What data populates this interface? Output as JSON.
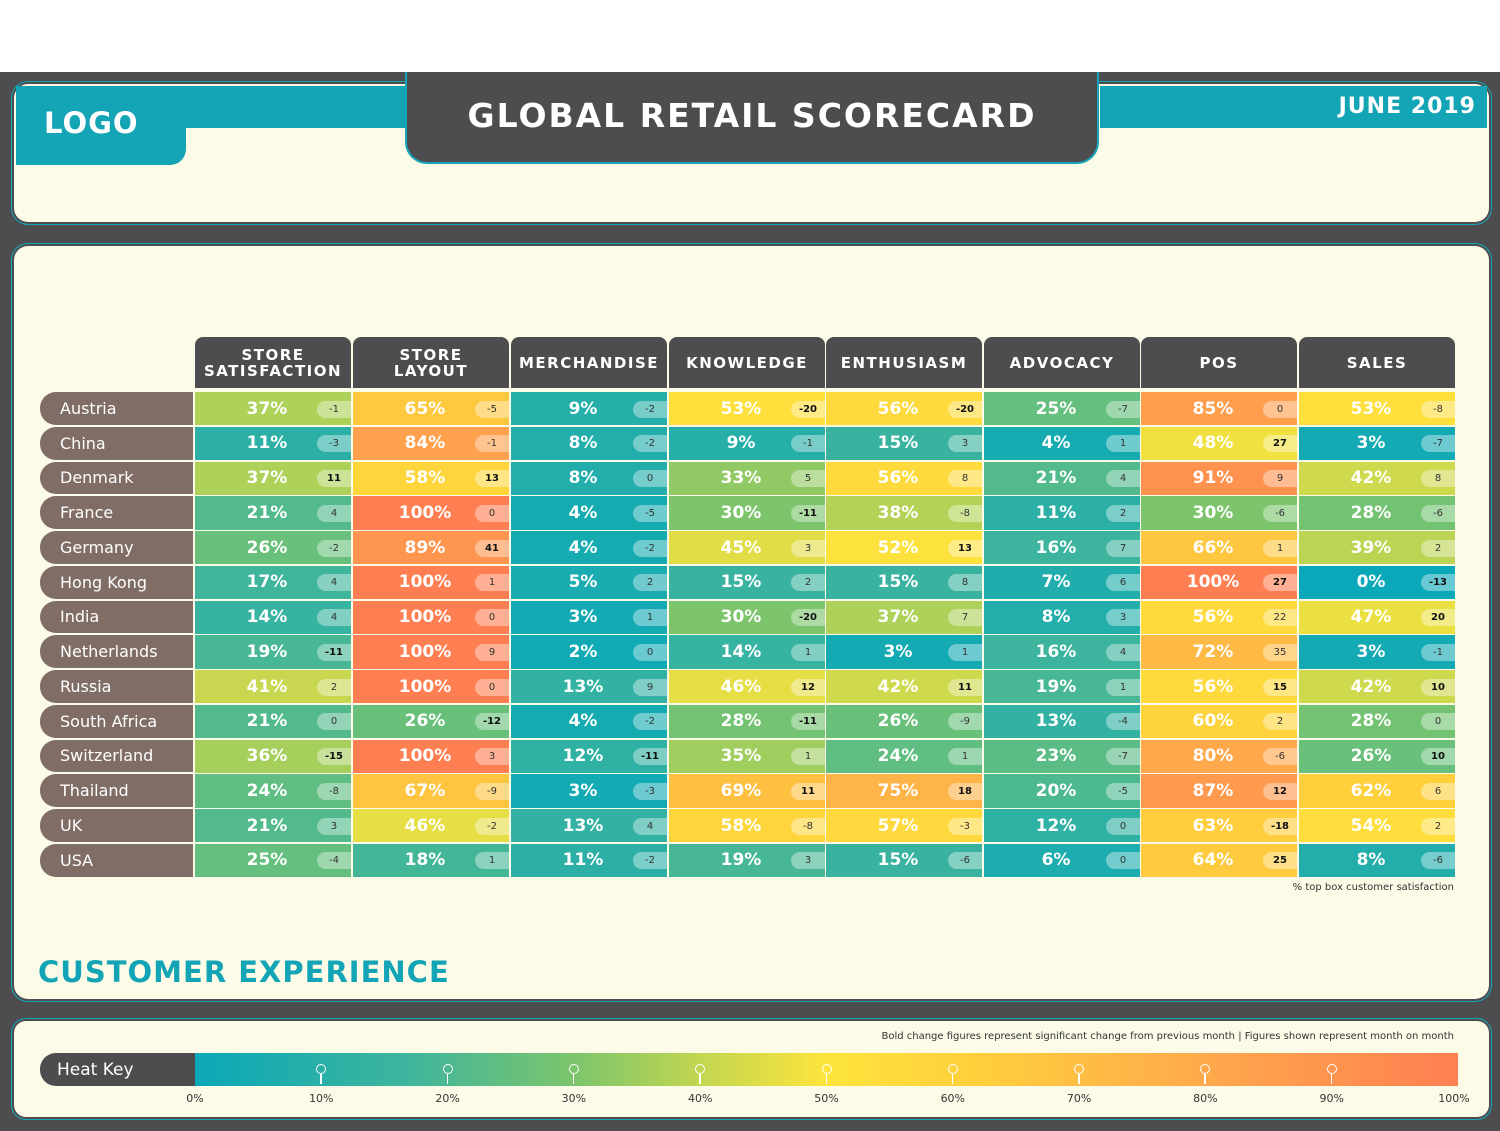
{
  "header": {
    "logo": "LOGO",
    "title": "GLOBAL RETAIL SCORECARD",
    "date": "JUNE 2019"
  },
  "section_title": "CUSTOMER EXPERIENCE",
  "footnote": "% top box customer satisfaction",
  "key_note": "Bold change figures represent significant change from previous month  |  Figures shown represent month on month",
  "heat_key": {
    "label": "Heat Key",
    "ticks": [
      "0%",
      "10%",
      "20%",
      "30%",
      "40%",
      "50%",
      "60%",
      "70%",
      "80%",
      "90%",
      "100%"
    ]
  },
  "colors": {
    "teal": "#13a4b6",
    "dark": "#4d4d4f",
    "row_label": "#806e66",
    "background": "#fbfbe8"
  },
  "chart_data": {
    "type": "heatmap",
    "columns": [
      "STORE\nSATISFACTION",
      "STORE\nLAYOUT",
      "MERCHANDISE",
      "KNOWLEDGE",
      "ENTHUSIASM",
      "ADVOCACY",
      "POS",
      "SALES"
    ],
    "rows": [
      "Austria",
      "China",
      "Denmark",
      "France",
      "Germany",
      "Hong Kong",
      "India",
      "Netherlands",
      "Russia",
      "South Africa",
      "Switzerland",
      "Thailand",
      "UK",
      "USA"
    ],
    "values": [
      [
        37,
        65,
        9,
        53,
        56,
        25,
        85,
        53
      ],
      [
        11,
        84,
        8,
        9,
        15,
        4,
        48,
        3
      ],
      [
        37,
        58,
        8,
        33,
        56,
        21,
        91,
        42
      ],
      [
        21,
        100,
        4,
        30,
        38,
        11,
        30,
        28
      ],
      [
        26,
        89,
        4,
        45,
        52,
        16,
        66,
        39
      ],
      [
        17,
        100,
        5,
        15,
        15,
        7,
        100,
        0
      ],
      [
        14,
        100,
        3,
        30,
        37,
        8,
        56,
        47
      ],
      [
        19,
        100,
        2,
        14,
        3,
        16,
        72,
        3
      ],
      [
        41,
        100,
        13,
        46,
        42,
        19,
        56,
        42
      ],
      [
        21,
        26,
        4,
        28,
        26,
        13,
        60,
        28
      ],
      [
        36,
        100,
        12,
        35,
        24,
        23,
        80,
        26
      ],
      [
        24,
        67,
        3,
        69,
        75,
        20,
        87,
        62
      ],
      [
        21,
        46,
        13,
        58,
        57,
        12,
        63,
        54
      ],
      [
        25,
        18,
        11,
        19,
        15,
        6,
        64,
        8
      ]
    ],
    "changes": [
      [
        -1,
        -5,
        -2,
        -20,
        -20,
        -7,
        0,
        -8
      ],
      [
        -3,
        -1,
        -2,
        -1,
        3,
        1,
        27,
        -7
      ],
      [
        11,
        13,
        0,
        5,
        8,
        4,
        9,
        8
      ],
      [
        4,
        0,
        -5,
        -11,
        -8,
        2,
        -6,
        -6
      ],
      [
        -2,
        41,
        -2,
        3,
        13,
        7,
        1,
        2
      ],
      [
        4,
        1,
        2,
        2,
        8,
        6,
        27,
        -13
      ],
      [
        4,
        0,
        1,
        -20,
        7,
        3,
        22,
        20
      ],
      [
        -11,
        9,
        0,
        1,
        1,
        4,
        35,
        -1
      ],
      [
        2,
        0,
        9,
        12,
        11,
        1,
        15,
        10
      ],
      [
        0,
        -12,
        -2,
        -11,
        -9,
        -4,
        2,
        0
      ],
      [
        -15,
        3,
        -11,
        1,
        1,
        -7,
        -6,
        10
      ],
      [
        -8,
        -9,
        -3,
        11,
        18,
        -5,
        12,
        6
      ],
      [
        3,
        -2,
        4,
        -8,
        -3,
        0,
        -18,
        2
      ],
      [
        -4,
        1,
        -2,
        3,
        -6,
        0,
        25,
        -6
      ]
    ],
    "significant": [
      [
        false,
        false,
        false,
        true,
        true,
        false,
        false,
        false
      ],
      [
        false,
        false,
        false,
        false,
        false,
        false,
        true,
        false
      ],
      [
        true,
        true,
        false,
        false,
        false,
        false,
        false,
        false
      ],
      [
        false,
        false,
        false,
        true,
        false,
        false,
        false,
        false
      ],
      [
        false,
        true,
        false,
        false,
        true,
        false,
        false,
        false
      ],
      [
        false,
        false,
        false,
        false,
        false,
        false,
        true,
        true
      ],
      [
        false,
        false,
        false,
        true,
        false,
        false,
        false,
        true
      ],
      [
        true,
        false,
        false,
        false,
        false,
        false,
        false,
        false
      ],
      [
        false,
        false,
        false,
        true,
        true,
        false,
        true,
        true
      ],
      [
        false,
        true,
        false,
        true,
        false,
        false,
        false,
        false
      ],
      [
        true,
        false,
        true,
        false,
        false,
        false,
        false,
        true
      ],
      [
        false,
        false,
        false,
        true,
        true,
        false,
        true,
        false
      ],
      [
        false,
        false,
        false,
        false,
        false,
        false,
        true,
        false
      ],
      [
        false,
        false,
        false,
        false,
        false,
        false,
        true,
        false
      ]
    ],
    "value_suffix": "%",
    "scale": [
      0,
      100
    ]
  }
}
